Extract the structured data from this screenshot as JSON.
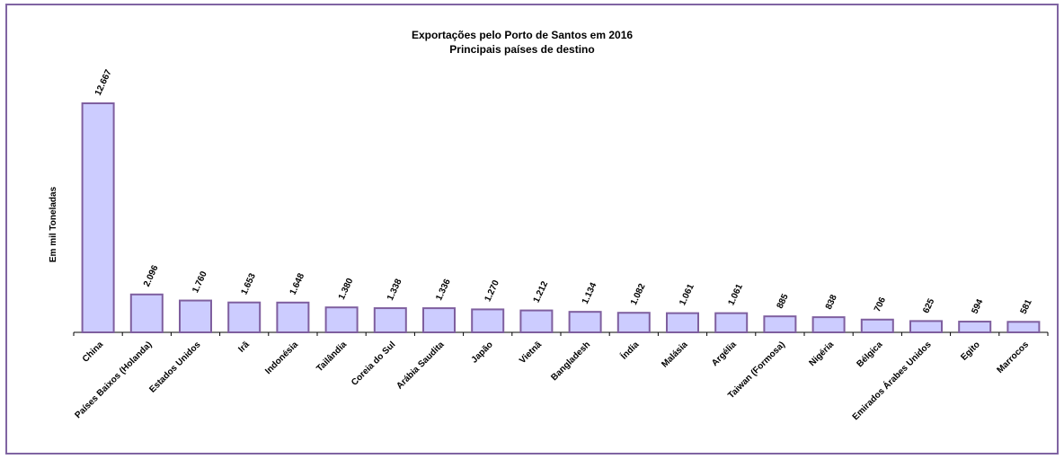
{
  "chart_data": {
    "type": "bar",
    "title": "Exportações pelo Porto de Santos em 2016",
    "subtitle": "Principais países de destino",
    "y_label": "Em  mil Toneladas",
    "categories": [
      "China",
      "Países Baixos (Holanda)",
      "Estados Unidos",
      "Irã",
      "Indonésia",
      "Tailândia",
      "Coreia do Sul",
      "Arábia Saudita",
      "Japão",
      "Vietnã",
      "Bangladesh",
      "Índia",
      "Malásia",
      "Argélia",
      "Taiwan (Formosa)",
      "Nigéria",
      "Bélgica",
      "Emirados Árabes Unidos",
      "Egito",
      "Marrocos"
    ],
    "values": [
      12667,
      2096,
      1760,
      1653,
      1648,
      1380,
      1338,
      1336,
      1270,
      1212,
      1134,
      1082,
      1061,
      1061,
      885,
      838,
      706,
      625,
      594,
      581
    ],
    "value_labels": [
      "12.667",
      "2.096",
      "1.760",
      "1.653",
      "1.648",
      "1.380",
      "1.338",
      "1.336",
      "1.270",
      "1.212",
      "1.134",
      "1.082",
      "1.061",
      "1.061",
      "885",
      "838",
      "706",
      "625",
      "594",
      "581"
    ],
    "color": "#ccccff"
  }
}
